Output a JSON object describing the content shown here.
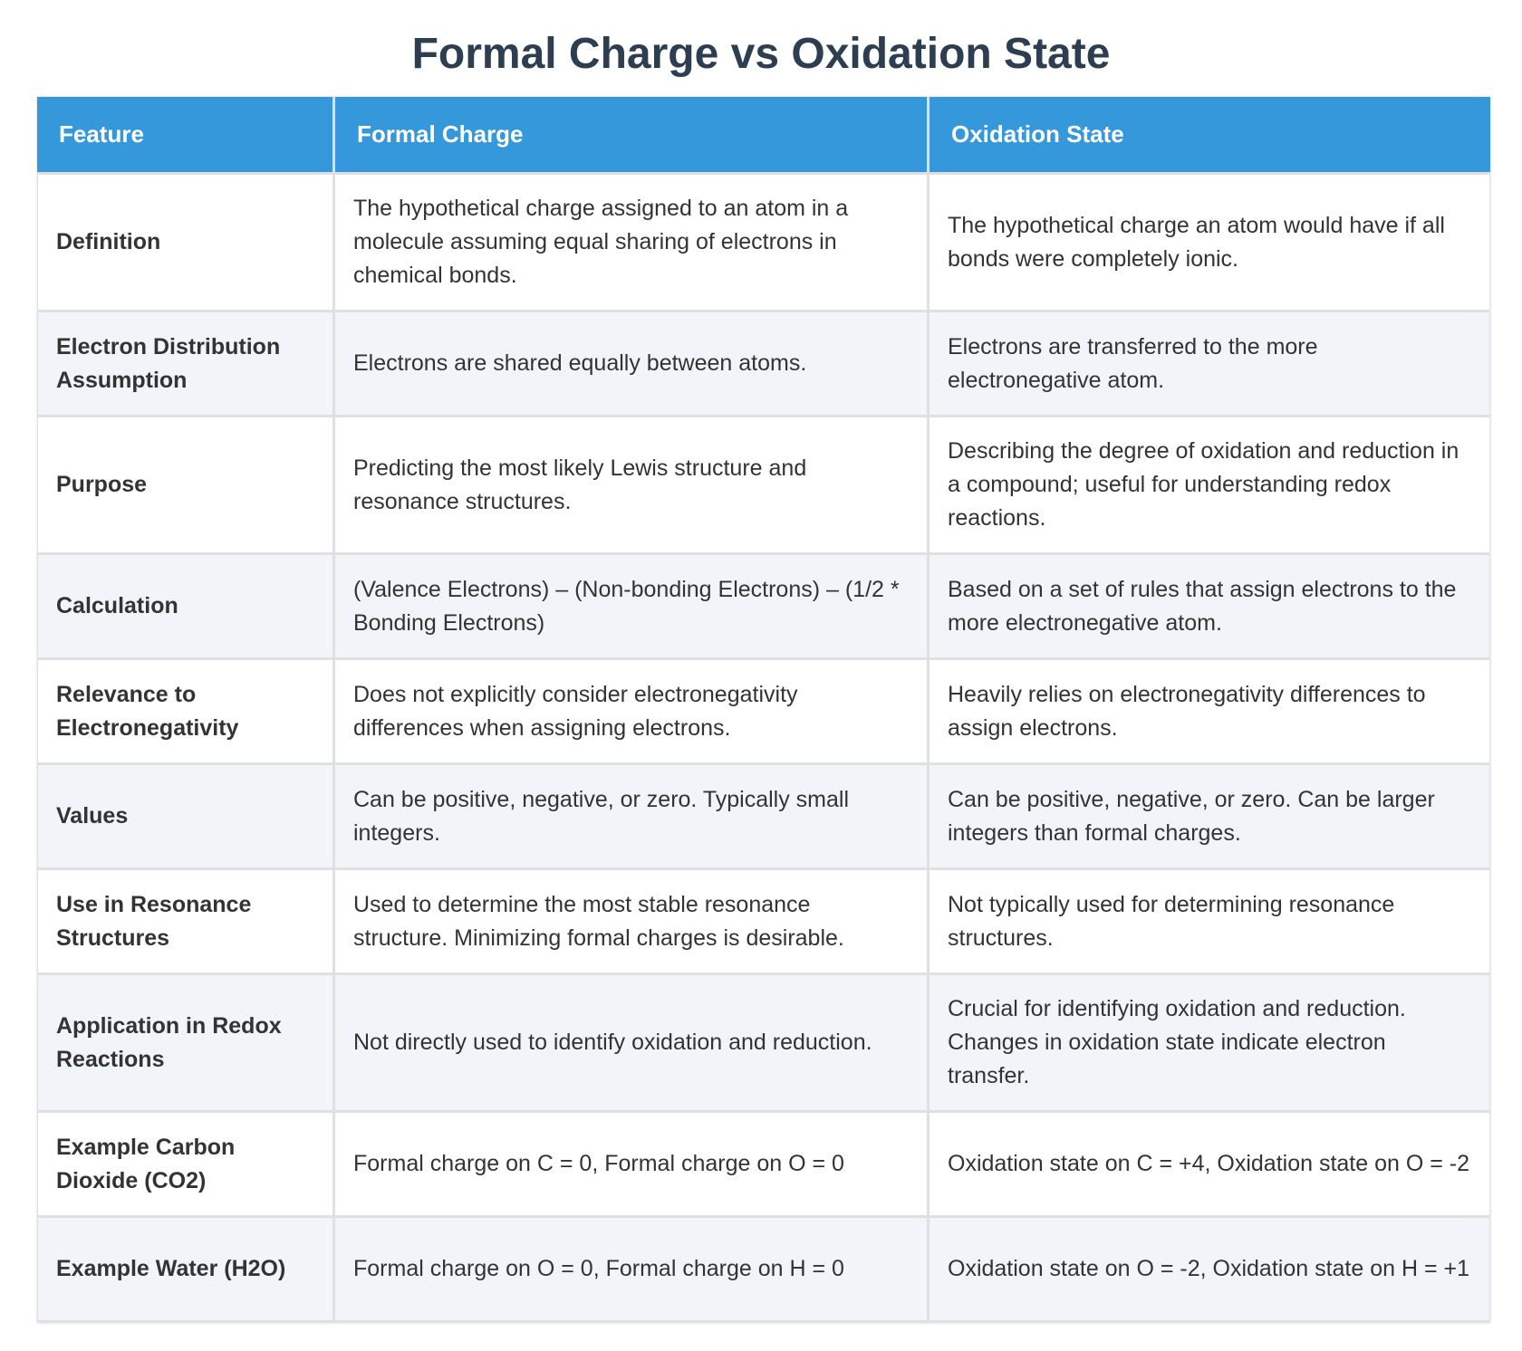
{
  "title": "Formal Charge vs Oxidation State",
  "table": {
    "headers": [
      "Feature",
      "Formal Charge",
      "Oxidation State"
    ],
    "rows": [
      [
        "Definition",
        "The hypothetical charge assigned to an atom in a molecule assuming equal sharing of electrons in chemical bonds.",
        "The hypothetical charge an atom would have if all bonds were completely ionic."
      ],
      [
        "Electron Distribution Assumption",
        "Electrons are shared equally between atoms.",
        "Electrons are transferred to the more electronegative atom."
      ],
      [
        "Purpose",
        "Predicting the most likely Lewis structure and resonance structures.",
        "Describing the degree of oxidation and reduction in a compound; useful for understanding redox reactions."
      ],
      [
        "Calculation",
        "(Valence Electrons) – (Non-bonding Electrons) – (1/2 * Bonding Electrons)",
        "Based on a set of rules that assign electrons to the more electronegative atom."
      ],
      [
        "Relevance to Electronegativity",
        "Does not explicitly consider electronegativity differences when assigning electrons.",
        "Heavily relies on electronegativity differences to assign electrons."
      ],
      [
        "Values",
        "Can be positive, negative, or zero. Typically small integers.",
        "Can be positive, negative, or zero. Can be larger integers than formal charges."
      ],
      [
        "Use in Resonance Structures",
        "Used to determine the most stable resonance structure. Minimizing formal charges is desirable.",
        "Not typically used for determining resonance structures."
      ],
      [
        "Application in Redox Reactions",
        "Not directly used to identify oxidation and reduction.",
        "Crucial for identifying oxidation and reduction. Changes in oxidation state indicate electron transfer."
      ],
      [
        "Example Carbon Dioxide (CO2)",
        "Formal charge on C = 0, Formal charge on O = 0",
        "Oxidation state on C = +4, Oxidation state on O = -2"
      ],
      [
        "Example Water (H2O)",
        "Formal charge on O = 0, Formal charge on H = 0",
        "Oxidation state on O = -2, Oxidation state on H = +1"
      ]
    ]
  },
  "colors": {
    "header_bg": "#3498db",
    "header_text": "#ffffff",
    "title_text": "#2c3e50",
    "row_alt_bg": "#f1f5f9",
    "border": "#e0e0e0"
  }
}
